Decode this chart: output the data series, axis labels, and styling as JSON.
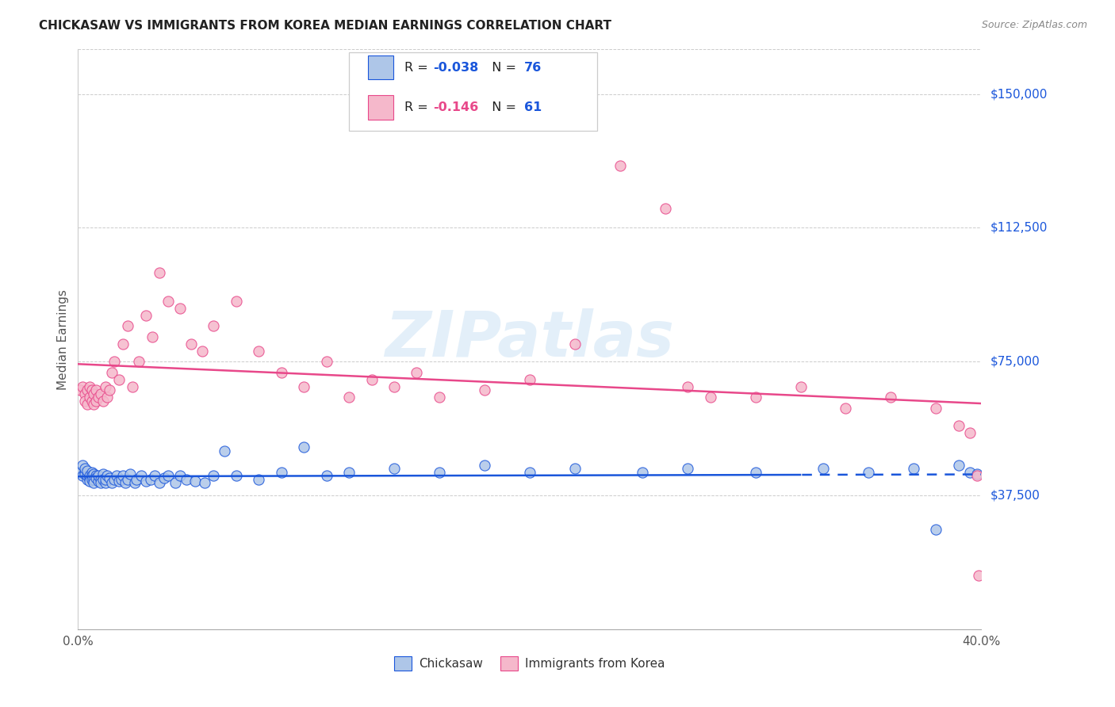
{
  "title": "CHICKASAW VS IMMIGRANTS FROM KOREA MEDIAN EARNINGS CORRELATION CHART",
  "source": "Source: ZipAtlas.com",
  "ylabel": "Median Earnings",
  "x_min": 0.0,
  "x_max": 0.4,
  "y_min": 0,
  "y_max": 162500,
  "y_ticks": [
    37500,
    75000,
    112500,
    150000
  ],
  "y_tick_labels": [
    "$37,500",
    "$75,000",
    "$112,500",
    "$150,000"
  ],
  "x_ticks": [
    0.0,
    0.1,
    0.2,
    0.3,
    0.4
  ],
  "x_tick_labels": [
    "0.0%",
    "",
    "",
    "",
    "40.0%"
  ],
  "legend_label1": "Chickasaw",
  "legend_label2": "Immigrants from Korea",
  "R1": "-0.038",
  "N1": "76",
  "R2": "-0.146",
  "N2": "61",
  "color_blue": "#aec6e8",
  "color_pink": "#f5b8cb",
  "line_color_blue": "#1a56db",
  "line_color_pink": "#e8488a",
  "text_color_dark": "#1a1a2e",
  "watermark": "ZIPatlas",
  "background_color": "#ffffff",
  "grid_color": "#cccccc",
  "scatter_blue_x": [
    0.001,
    0.002,
    0.002,
    0.003,
    0.003,
    0.003,
    0.004,
    0.004,
    0.004,
    0.005,
    0.005,
    0.005,
    0.006,
    0.006,
    0.006,
    0.007,
    0.007,
    0.007,
    0.008,
    0.008,
    0.009,
    0.009,
    0.01,
    0.01,
    0.011,
    0.011,
    0.012,
    0.012,
    0.013,
    0.014,
    0.015,
    0.016,
    0.017,
    0.018,
    0.019,
    0.02,
    0.021,
    0.022,
    0.023,
    0.025,
    0.026,
    0.028,
    0.03,
    0.032,
    0.034,
    0.036,
    0.038,
    0.04,
    0.043,
    0.045,
    0.048,
    0.052,
    0.056,
    0.06,
    0.065,
    0.07,
    0.08,
    0.09,
    0.1,
    0.11,
    0.12,
    0.14,
    0.16,
    0.18,
    0.2,
    0.22,
    0.25,
    0.27,
    0.3,
    0.33,
    0.35,
    0.37,
    0.38,
    0.39,
    0.395,
    0.398
  ],
  "scatter_blue_y": [
    44000,
    46000,
    43000,
    44000,
    43500,
    45000,
    42000,
    43000,
    44500,
    42500,
    43000,
    41500,
    44000,
    43000,
    42000,
    43500,
    42000,
    41000,
    43000,
    42500,
    41500,
    43000,
    42000,
    41000,
    43500,
    42000,
    41000,
    42000,
    43000,
    42500,
    41000,
    42000,
    43000,
    41500,
    42000,
    43000,
    41000,
    42000,
    43500,
    41000,
    42000,
    43000,
    41500,
    42000,
    43000,
    41000,
    42500,
    43000,
    41000,
    43000,
    42000,
    41500,
    41000,
    43000,
    50000,
    43000,
    42000,
    44000,
    51000,
    43000,
    44000,
    45000,
    44000,
    46000,
    44000,
    45000,
    44000,
    45000,
    44000,
    45000,
    44000,
    45000,
    28000,
    46000,
    44000,
    43500
  ],
  "scatter_pink_x": [
    0.001,
    0.002,
    0.003,
    0.003,
    0.004,
    0.004,
    0.005,
    0.005,
    0.006,
    0.006,
    0.007,
    0.007,
    0.008,
    0.008,
    0.009,
    0.01,
    0.011,
    0.012,
    0.013,
    0.014,
    0.015,
    0.016,
    0.018,
    0.02,
    0.022,
    0.024,
    0.027,
    0.03,
    0.033,
    0.036,
    0.04,
    0.045,
    0.05,
    0.055,
    0.06,
    0.07,
    0.08,
    0.09,
    0.1,
    0.11,
    0.12,
    0.13,
    0.14,
    0.15,
    0.16,
    0.18,
    0.2,
    0.22,
    0.24,
    0.26,
    0.27,
    0.28,
    0.3,
    0.32,
    0.34,
    0.36,
    0.38,
    0.39,
    0.395,
    0.398,
    0.399
  ],
  "scatter_pink_y": [
    67000,
    68000,
    66000,
    64000,
    67000,
    63000,
    65000,
    68000,
    64000,
    67000,
    63000,
    66000,
    64000,
    67000,
    65000,
    66000,
    64000,
    68000,
    65000,
    67000,
    72000,
    75000,
    70000,
    80000,
    85000,
    68000,
    75000,
    88000,
    82000,
    100000,
    92000,
    90000,
    80000,
    78000,
    85000,
    92000,
    78000,
    72000,
    68000,
    75000,
    65000,
    70000,
    68000,
    72000,
    65000,
    67000,
    70000,
    80000,
    130000,
    118000,
    68000,
    65000,
    65000,
    68000,
    62000,
    65000,
    62000,
    57000,
    55000,
    43000,
    15000
  ]
}
